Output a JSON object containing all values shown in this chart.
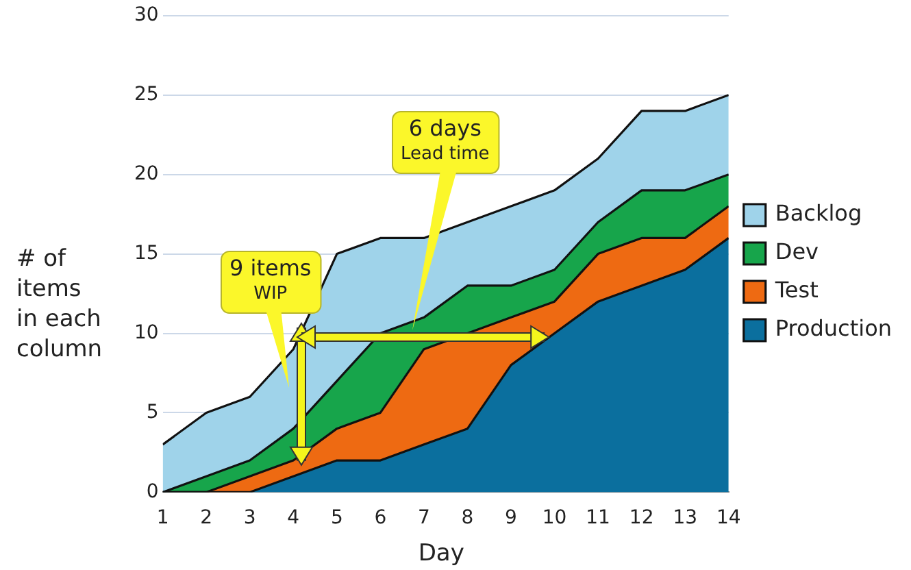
{
  "chart_data": {
    "type": "area",
    "stacked": true,
    "xlabel": "Day",
    "ylabel": "# of\nitems\nin each\ncolumn",
    "x": [
      1,
      2,
      3,
      4,
      5,
      6,
      7,
      8,
      9,
      10,
      11,
      12,
      13,
      14
    ],
    "xlim": [
      1,
      14
    ],
    "xticks": [
      1,
      2,
      3,
      4,
      5,
      6,
      7,
      8,
      9,
      10,
      11,
      12,
      13,
      14
    ],
    "ylim": [
      0,
      30
    ],
    "yticks": [
      0,
      5,
      10,
      15,
      20,
      25,
      30
    ],
    "grid": "y",
    "legend": "right",
    "marker": "none",
    "series": [
      {
        "name": "Production",
        "color": "#0b6f9e",
        "values": [
          0,
          0,
          0,
          1,
          2,
          2,
          3,
          4,
          8,
          10,
          12,
          13,
          14,
          16
        ]
      },
      {
        "name": "Test",
        "color": "#ee6a12",
        "values": [
          0,
          0,
          1,
          1,
          2,
          3,
          6,
          6,
          3,
          2,
          3,
          3,
          2,
          2
        ]
      },
      {
        "name": "Dev",
        "color": "#17a54b",
        "values": [
          0,
          1,
          1,
          2,
          3,
          5,
          2,
          3,
          2,
          2,
          2,
          3,
          3,
          2
        ]
      },
      {
        "name": "Backlog",
        "color": "#9fd3ea",
        "values": [
          3,
          4,
          4,
          5,
          8,
          6,
          5,
          4,
          5,
          5,
          4,
          5,
          5,
          5
        ]
      }
    ],
    "annotations": [
      "9 items\nWIP",
      "6 days\nLead time"
    ]
  }
}
